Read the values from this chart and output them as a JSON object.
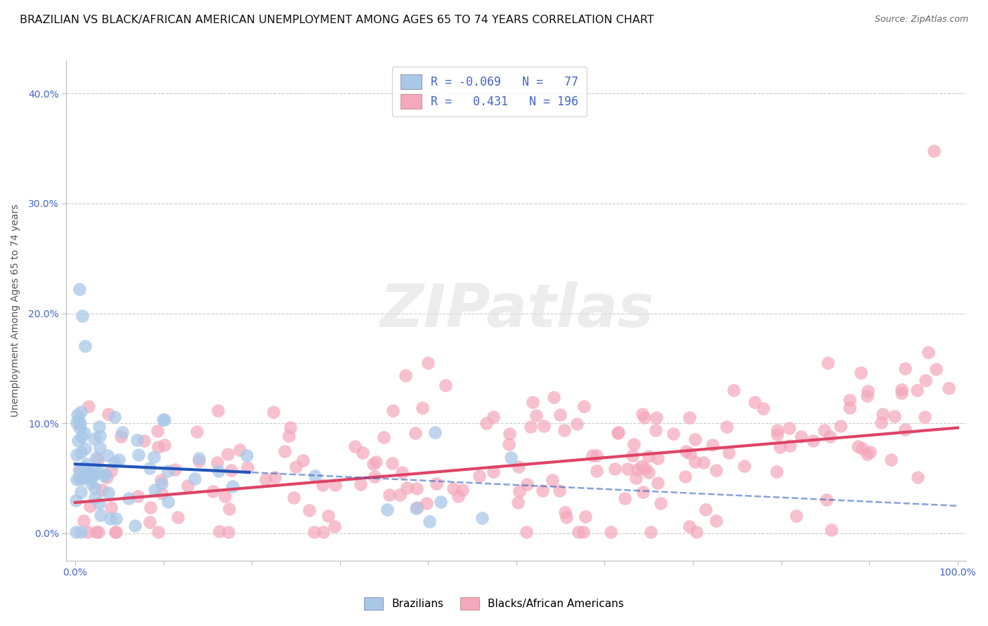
{
  "title": "BRAZILIAN VS BLACK/AFRICAN AMERICAN UNEMPLOYMENT AMONG AGES 65 TO 74 YEARS CORRELATION CHART",
  "source": "Source: ZipAtlas.com",
  "ylabel": "Unemployment Among Ages 65 to 74 years",
  "xlim": [
    -0.01,
    1.01
  ],
  "ylim": [
    -0.025,
    0.43
  ],
  "ytick_vals": [
    0.0,
    0.1,
    0.2,
    0.3,
    0.4
  ],
  "legend_r1": "-0.069",
  "legend_n1": "77",
  "legend_r2": "0.431",
  "legend_n2": "196",
  "blue_color": "#a8c8e8",
  "pink_color": "#f4a8bc",
  "blue_line_color": "#2255bb",
  "pink_line_color": "#dd4466",
  "watermark_text": "ZIPatlas",
  "title_fontsize": 11.5,
  "axis_label_fontsize": 10,
  "tick_fontsize": 10,
  "tick_color": "#4466cc",
  "blue_slope": -0.038,
  "blue_intercept": 0.063,
  "pink_slope": 0.068,
  "pink_intercept": 0.028,
  "blue_solid_cutoff": 0.2,
  "random_seed": 42
}
